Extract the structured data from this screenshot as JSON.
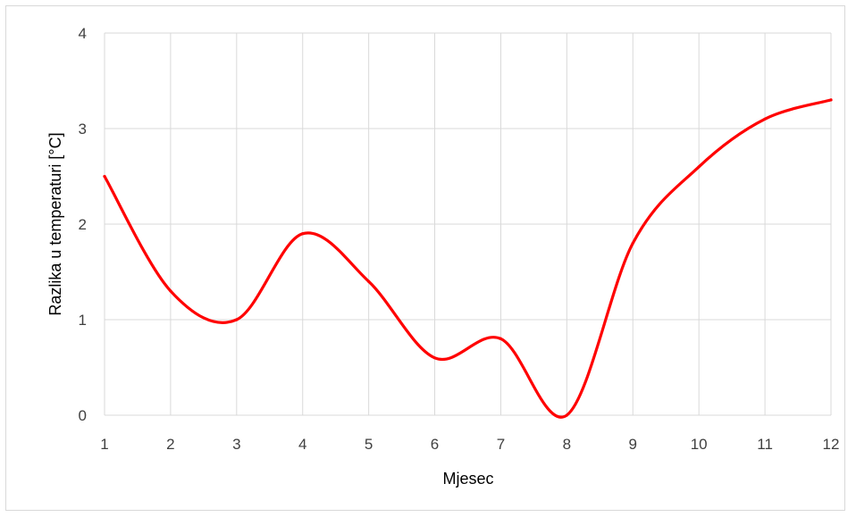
{
  "chart_data": {
    "type": "line",
    "title": "",
    "xlabel": "Mjesec",
    "ylabel": "Razlika u temperaturi [°C]",
    "x": [
      1,
      2,
      3,
      4,
      5,
      6,
      7,
      8,
      9,
      10,
      11,
      12
    ],
    "series": [
      {
        "values": [
          2.5,
          1.3,
          1.0,
          1.9,
          1.4,
          0.6,
          0.8,
          0.0,
          1.8,
          2.6,
          3.1,
          3.3
        ]
      }
    ],
    "xlim": [
      1,
      12
    ],
    "ylim": [
      0,
      4
    ],
    "xticks": [
      "1",
      "2",
      "3",
      "4",
      "5",
      "6",
      "7",
      "8",
      "9",
      "10",
      "11",
      "12"
    ],
    "yticks": [
      "0",
      "1",
      "2",
      "3",
      "4"
    ],
    "grid": true,
    "line_color": "#ff0000",
    "grid_color": "#d9d9d9"
  }
}
